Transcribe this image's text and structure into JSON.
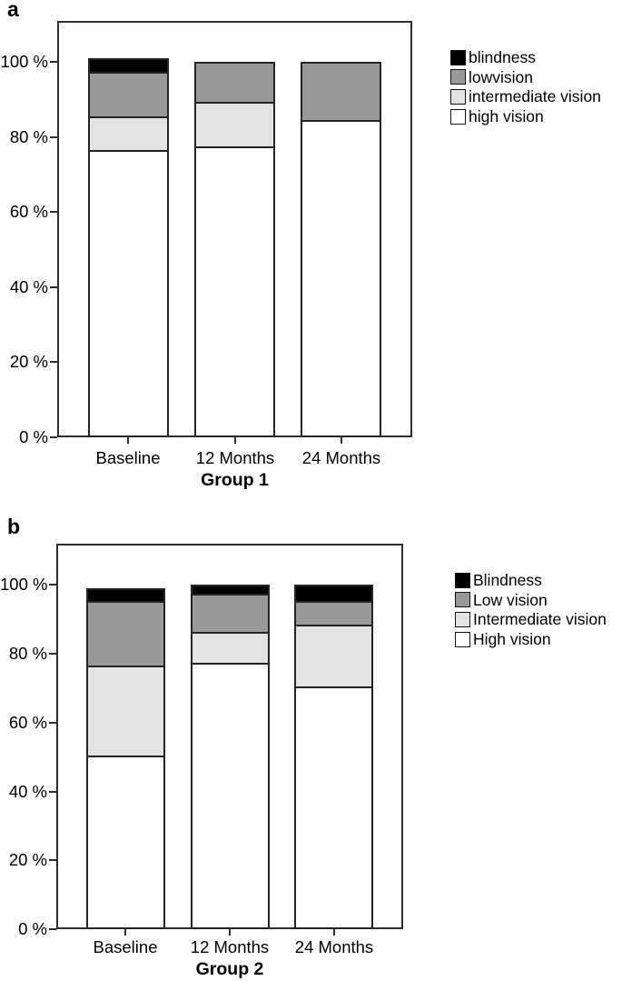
{
  "figure": {
    "background": "#ffffff",
    "frame_border_color": "#2e2e2e",
    "bar_border_color": "#242424",
    "text_color": "#000000"
  },
  "chart_data": [
    {
      "type": "bar",
      "stacked": true,
      "panel_label": "a",
      "title": "",
      "xlabel": "Group 1",
      "ylabel": "",
      "grid": false,
      "legend_position": "right-top",
      "categories": [
        "Baseline",
        "12 Months",
        "24 Months"
      ],
      "ylim": [
        0,
        111
      ],
      "y_ticks": [
        {
          "value": 100,
          "label": "100 %"
        },
        {
          "value": 80,
          "label": "80 %"
        },
        {
          "value": 60,
          "label": "60 %"
        },
        {
          "value": 40,
          "label": "40 %"
        },
        {
          "value": 20,
          "label": "20 %"
        },
        {
          "value": 0,
          "label": "0 %"
        }
      ],
      "series": [
        {
          "name": "blindness",
          "color": "#000000",
          "values": [
            3,
            0,
            0
          ]
        },
        {
          "name": "lowvision",
          "color": "#999999",
          "values": [
            12,
            10,
            15
          ]
        },
        {
          "name": "intermediate vision",
          "color": "#e3e3e3",
          "values": [
            9,
            12,
            0
          ]
        },
        {
          "name": "high vision",
          "color": "#ffffff",
          "values": [
            77,
            78,
            85
          ]
        }
      ],
      "stack_totals": [
        101,
        100,
        100
      ]
    },
    {
      "type": "bar",
      "stacked": true,
      "panel_label": "b",
      "title": "",
      "xlabel": "Group 2",
      "ylabel": "",
      "grid": false,
      "legend_position": "right-top",
      "categories": [
        "Baseline",
        "12 Months",
        "24 Months"
      ],
      "ylim": [
        0,
        112
      ],
      "y_ticks": [
        {
          "value": 100,
          "label": "100 %"
        },
        {
          "value": 80,
          "label": "80 %"
        },
        {
          "value": 60,
          "label": "60 %"
        },
        {
          "value": 40,
          "label": "40 %"
        },
        {
          "value": 20,
          "label": "20 %"
        },
        {
          "value": 0,
          "label": "0 %"
        }
      ],
      "series": [
        {
          "name": "Blindness",
          "color": "#000000",
          "values": [
            3,
            2,
            4
          ]
        },
        {
          "name": "Low vision",
          "color": "#999999",
          "values": [
            19,
            11,
            7
          ]
        },
        {
          "name": "Intermediate vision",
          "color": "#e3e3e3",
          "values": [
            26,
            9,
            18
          ]
        },
        {
          "name": "High vision",
          "color": "#ffffff",
          "values": [
            51,
            78,
            71
          ]
        }
      ],
      "stack_totals": [
        99,
        100,
        100
      ]
    }
  ]
}
